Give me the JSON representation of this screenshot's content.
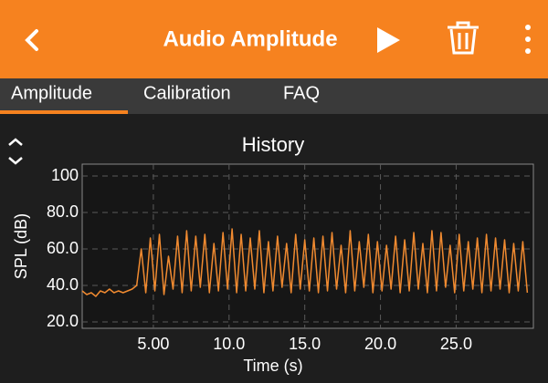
{
  "header": {
    "title": "Audio Amplitude"
  },
  "tabs": [
    "Amplitude",
    "Calibration",
    "FAQ"
  ],
  "chart_data": {
    "type": "line",
    "title": "History",
    "x_label": "Time (s)",
    "y_label": "SPL (dB)",
    "color": "#f08a30",
    "grid": true,
    "xlim": [
      0.3,
      30.1
    ],
    "ylim": [
      16.5,
      106.5
    ],
    "xticks": [
      {
        "value": 5,
        "label": "5.00"
      },
      {
        "value": 10,
        "label": "10.0"
      },
      {
        "value": 15,
        "label": "15.0"
      },
      {
        "value": 20,
        "label": "20.0"
      },
      {
        "value": 25,
        "label": "25.0"
      }
    ],
    "yticks": [
      {
        "value": 20,
        "label": "20.0"
      },
      {
        "value": 40,
        "label": "40.0"
      },
      {
        "value": 60,
        "label": "60.0"
      },
      {
        "value": 80,
        "label": "80.0"
      },
      100
    ],
    "x": [
      0.3,
      0.6,
      0.9,
      1.2,
      1.5,
      1.8,
      2.1,
      2.4,
      2.7,
      3.0,
      3.3,
      3.6,
      3.9,
      4.2,
      4.5,
      4.8,
      5.1,
      5.4,
      5.7,
      6.0,
      6.3,
      6.6,
      6.9,
      7.2,
      7.5,
      7.8,
      8.1,
      8.4,
      8.7,
      9.0,
      9.3,
      9.6,
      9.9,
      10.2,
      10.5,
      10.8,
      11.1,
      11.4,
      11.7,
      12.0,
      12.3,
      12.6,
      12.9,
      13.2,
      13.5,
      13.8,
      14.1,
      14.4,
      14.7,
      15.0,
      15.3,
      15.6,
      15.9,
      16.2,
      16.5,
      16.8,
      17.1,
      17.4,
      17.7,
      18.0,
      18.3,
      18.6,
      18.9,
      19.2,
      19.5,
      19.8,
      20.1,
      20.4,
      20.7,
      21.0,
      21.3,
      21.6,
      21.9,
      22.2,
      22.5,
      22.8,
      23.1,
      23.4,
      23.7,
      24.0,
      24.3,
      24.6,
      24.9,
      25.2,
      25.5,
      25.8,
      26.1,
      26.4,
      26.7,
      27.0,
      27.3,
      27.6,
      27.9,
      28.2,
      28.5,
      28.8,
      29.1,
      29.4,
      29.7
    ],
    "values": [
      37,
      35,
      36,
      34,
      37,
      36,
      38,
      36,
      37,
      36,
      37,
      38,
      40,
      60,
      36,
      66,
      37,
      68,
      35,
      56,
      38,
      67,
      36,
      70,
      37,
      67,
      39,
      68,
      36,
      63,
      37,
      69,
      38,
      71,
      36,
      68,
      37,
      66,
      38,
      70,
      36,
      64,
      37,
      67,
      39,
      63,
      36,
      68,
      38,
      65,
      37,
      66,
      36,
      67,
      37,
      69,
      38,
      62,
      36,
      70,
      37,
      64,
      39,
      68,
      36,
      64,
      37,
      62,
      38,
      67,
      36,
      65,
      37,
      69,
      38,
      63,
      36,
      70,
      37,
      69,
      39,
      62,
      36,
      68,
      37,
      64,
      38,
      66,
      36,
      68,
      37,
      66,
      38,
      65,
      36,
      63,
      37,
      64,
      36
    ]
  }
}
